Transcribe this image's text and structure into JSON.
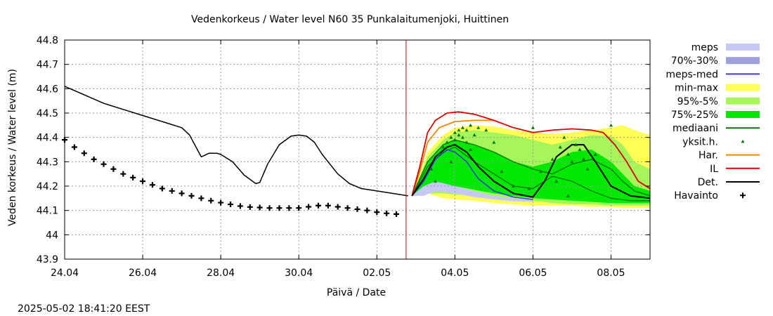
{
  "chart_data": {
    "type": "line",
    "title": "Vedenkorkeus / Water level   N60 35 Punkalaitumenjoki, Huittinen",
    "xlabel": "Päivä / Date",
    "ylabel": "Veden korkeus / Water level (m)",
    "timestamp": "2025-05-02 18:41:20 EEST",
    "xlim": [
      0,
      15
    ],
    "ylim": [
      43.9,
      44.8
    ],
    "grid": true,
    "legend_position": "right",
    "x_tick_values": [
      0,
      2,
      4,
      6,
      8,
      10,
      12,
      14
    ],
    "x_tick_labels": [
      "24.04",
      "26.04",
      "28.04",
      "30.04",
      "02.05",
      "04.05",
      "06.05",
      "08.05"
    ],
    "y_ticks": [
      "43.9",
      "44",
      "44.1",
      "44.2",
      "44.3",
      "44.4",
      "44.5",
      "44.6",
      "44.7",
      "44.8"
    ],
    "forecast_start": 8.75,
    "colors": {
      "meps": "#c6c8f5",
      "p70_30": "#9f9fdc",
      "meps_med": "#3a3ad8",
      "minmax": "#ffff55",
      "p95_5": "#a6f55a",
      "p75_25": "#00e800",
      "mediaani": "#007700",
      "yksit": "#007700",
      "har": "#ee8800",
      "il": "#dd0000",
      "det": "#000000",
      "havainto": "#000000",
      "forecast_line": "#cc0000"
    },
    "legend": [
      {
        "key": "meps",
        "label": "meps",
        "style": "band"
      },
      {
        "key": "p70_30",
        "label": "70%-30%",
        "style": "band"
      },
      {
        "key": "meps_med",
        "label": "meps-med",
        "style": "line"
      },
      {
        "key": "minmax",
        "label": "min-max",
        "style": "band"
      },
      {
        "key": "p95_5",
        "label": "95%-5%",
        "style": "band"
      },
      {
        "key": "p75_25",
        "label": "75%-25%",
        "style": "band"
      },
      {
        "key": "mediaani",
        "label": "mediaani",
        "style": "line"
      },
      {
        "key": "yksit",
        "label": "yksit.h.",
        "style": "dot"
      },
      {
        "key": "har",
        "label": "Har.",
        "style": "line"
      },
      {
        "key": "il",
        "label": "IL",
        "style": "line"
      },
      {
        "key": "det",
        "label": "Det.",
        "style": "line"
      },
      {
        "key": "havainto",
        "label": "Havainto",
        "style": "plus"
      }
    ],
    "simulated_history": {
      "x": [
        0,
        0.5,
        1,
        1.5,
        2,
        2.5,
        3,
        3.2,
        3.4,
        3.5,
        3.7,
        3.9,
        4,
        4.3,
        4.6,
        4.9,
        5,
        5.2,
        5.5,
        5.8,
        6,
        6.2,
        6.4,
        6.6,
        6.8,
        7,
        7.3,
        7.6,
        8,
        8.4,
        8.8
      ],
      "y": [
        44.61,
        44.575,
        44.54,
        44.515,
        44.49,
        44.465,
        44.44,
        44.41,
        44.35,
        44.32,
        44.335,
        44.335,
        44.33,
        44.3,
        44.245,
        44.21,
        44.215,
        44.29,
        44.37,
        44.405,
        44.41,
        44.405,
        44.38,
        44.33,
        44.29,
        44.25,
        44.21,
        44.19,
        44.18,
        44.17,
        44.16
      ]
    },
    "havainto": {
      "x": [
        0,
        0.25,
        0.5,
        0.75,
        1,
        1.25,
        1.5,
        1.75,
        2,
        2.25,
        2.5,
        2.75,
        3,
        3.25,
        3.5,
        3.75,
        4,
        4.25,
        4.5,
        4.75,
        5,
        5.25,
        5.5,
        5.75,
        6,
        6.25,
        6.5,
        6.75,
        7,
        7.25,
        7.5,
        7.75,
        8,
        8.25,
        8.5
      ],
      "y": [
        44.39,
        44.36,
        44.335,
        44.31,
        44.29,
        44.27,
        44.25,
        44.235,
        44.22,
        44.205,
        44.19,
        44.18,
        44.17,
        44.16,
        44.15,
        44.14,
        44.132,
        44.125,
        44.118,
        44.114,
        44.112,
        44.11,
        44.11,
        44.11,
        44.11,
        44.115,
        44.12,
        44.12,
        44.115,
        44.11,
        44.105,
        44.1,
        44.093,
        44.088,
        44.085
      ]
    },
    "bands": {
      "minmax": {
        "x": [
          8.9,
          9.3,
          9.7,
          10,
          10.5,
          11,
          11.5,
          12,
          12.5,
          13,
          13.5,
          14,
          14.3,
          14.6,
          15
        ],
        "upper": [
          44.16,
          44.34,
          44.41,
          44.44,
          44.45,
          44.445,
          44.43,
          44.42,
          44.415,
          44.42,
          44.43,
          44.44,
          44.45,
          44.43,
          44.41
        ],
        "lower": [
          44.16,
          44.17,
          44.15,
          44.145,
          44.14,
          44.13,
          44.125,
          44.12,
          44.12,
          44.12,
          44.115,
          44.115,
          44.11,
          44.11,
          44.11
        ]
      },
      "p95_5": {
        "x": [
          8.9,
          9.3,
          9.7,
          10,
          10.5,
          11,
          11.5,
          12,
          12.5,
          13,
          13.5,
          14,
          14.3,
          14.6,
          15
        ],
        "upper": [
          44.16,
          44.32,
          44.39,
          44.42,
          44.43,
          44.42,
          44.41,
          44.39,
          44.37,
          44.39,
          44.41,
          44.405,
          44.37,
          44.3,
          44.27
        ],
        "lower": [
          44.16,
          44.17,
          44.17,
          44.165,
          44.16,
          44.155,
          44.15,
          44.14,
          44.13,
          44.125,
          44.125,
          44.12,
          44.12,
          44.12,
          44.12
        ]
      },
      "p75_25": {
        "x": [
          8.9,
          9.3,
          9.7,
          10,
          10.5,
          11,
          11.5,
          12,
          12.5,
          13,
          13.5,
          14,
          14.3,
          14.6,
          15
        ],
        "upper": [
          44.16,
          44.3,
          44.37,
          44.39,
          44.37,
          44.34,
          44.3,
          44.28,
          44.3,
          44.34,
          44.35,
          44.3,
          44.25,
          44.2,
          44.18
        ],
        "lower": [
          44.16,
          44.18,
          44.2,
          44.2,
          44.185,
          44.17,
          44.16,
          44.15,
          44.145,
          44.14,
          44.135,
          44.13,
          44.13,
          44.13,
          44.13
        ]
      },
      "meps": {
        "x": [
          8.9,
          9.2,
          9.5,
          10,
          10.5,
          11,
          11.5,
          12
        ],
        "upper": [
          44.16,
          44.2,
          44.22,
          44.2,
          44.18,
          44.16,
          44.15,
          44.145
        ],
        "lower": [
          44.16,
          44.16,
          44.18,
          44.17,
          44.155,
          44.145,
          44.138,
          44.135
        ]
      }
    },
    "lines": {
      "mediaani": {
        "x": [
          8.9,
          9.3,
          9.7,
          10,
          10.5,
          11,
          11.5,
          12,
          12.5,
          13,
          13.5,
          14,
          14.5,
          15
        ],
        "y": [
          44.16,
          44.28,
          44.34,
          44.36,
          44.3,
          44.25,
          44.2,
          44.19,
          44.24,
          44.22,
          44.18,
          44.15,
          44.14,
          44.14
        ]
      },
      "mediaani2": {
        "x": [
          8.9,
          9.3,
          9.7,
          10,
          10.5,
          11,
          11.5,
          12,
          12.5,
          13,
          13.5,
          14,
          14.3,
          14.6,
          15
        ],
        "y": [
          44.16,
          44.3,
          44.37,
          44.39,
          44.37,
          44.34,
          44.3,
          44.27,
          44.25,
          44.29,
          44.31,
          44.27,
          44.22,
          44.18,
          44.16
        ]
      },
      "meps_med": {
        "x": [
          8.9,
          9.2,
          9.5,
          9.8,
          10,
          10.3,
          10.6,
          11,
          11.5,
          12
        ],
        "y": [
          44.16,
          44.22,
          44.31,
          44.35,
          44.34,
          44.3,
          44.23,
          44.18,
          44.155,
          44.145
        ]
      },
      "har": {
        "x": [
          8.9,
          9.1,
          9.3,
          9.6,
          10,
          10.5,
          11
        ],
        "y": [
          44.16,
          44.26,
          44.38,
          44.44,
          44.465,
          44.47,
          44.47
        ]
      },
      "il": {
        "x": [
          8.9,
          9.1,
          9.3,
          9.5,
          9.8,
          10.1,
          10.5,
          11,
          11.5,
          12,
          12.5,
          13,
          13.5,
          13.8,
          14.1,
          14.4,
          14.7,
          15
        ],
        "y": [
          44.16,
          44.28,
          44.42,
          44.47,
          44.5,
          44.505,
          44.495,
          44.47,
          44.44,
          44.42,
          44.43,
          44.435,
          44.43,
          44.42,
          44.37,
          44.3,
          44.22,
          44.19
        ]
      },
      "det": {
        "x": [
          8.9,
          9.2,
          9.5,
          9.8,
          10,
          10.3,
          10.6,
          11,
          11.5,
          12,
          12.3,
          12.6,
          13,
          13.3,
          13.6,
          14,
          14.5,
          15
        ],
        "y": [
          44.16,
          44.23,
          44.32,
          44.36,
          44.37,
          44.34,
          44.28,
          44.22,
          44.17,
          44.155,
          44.22,
          44.32,
          44.37,
          44.37,
          44.3,
          44.2,
          44.16,
          44.15
        ]
      }
    },
    "yksit_points": {
      "x": [
        9.4,
        9.6,
        9.7,
        9.8,
        9.9,
        10,
        10,
        10.1,
        10.1,
        10.2,
        10.2,
        10.3,
        10.3,
        10.4,
        10.5,
        10.6,
        10.8,
        11,
        9.5,
        9.9,
        10.4,
        11.2,
        11.5,
        12,
        12.2,
        12.5,
        12.7,
        12.8,
        12.9,
        13.0,
        13.1,
        13.2,
        13.3,
        13.4,
        13.6,
        14.0,
        12.6,
        12.9,
        11.9
      ],
      "y": [
        44.27,
        44.33,
        44.36,
        44.38,
        44.4,
        44.42,
        44.39,
        44.43,
        44.41,
        44.44,
        44.4,
        44.43,
        44.38,
        44.45,
        44.41,
        44.44,
        44.43,
        44.38,
        44.22,
        44.3,
        44.35,
        44.26,
        44.2,
        44.44,
        44.26,
        44.31,
        44.36,
        44.4,
        44.33,
        44.3,
        44.37,
        44.35,
        44.31,
        44.27,
        44.33,
        44.45,
        44.22,
        44.16,
        44.19
      ]
    }
  }
}
